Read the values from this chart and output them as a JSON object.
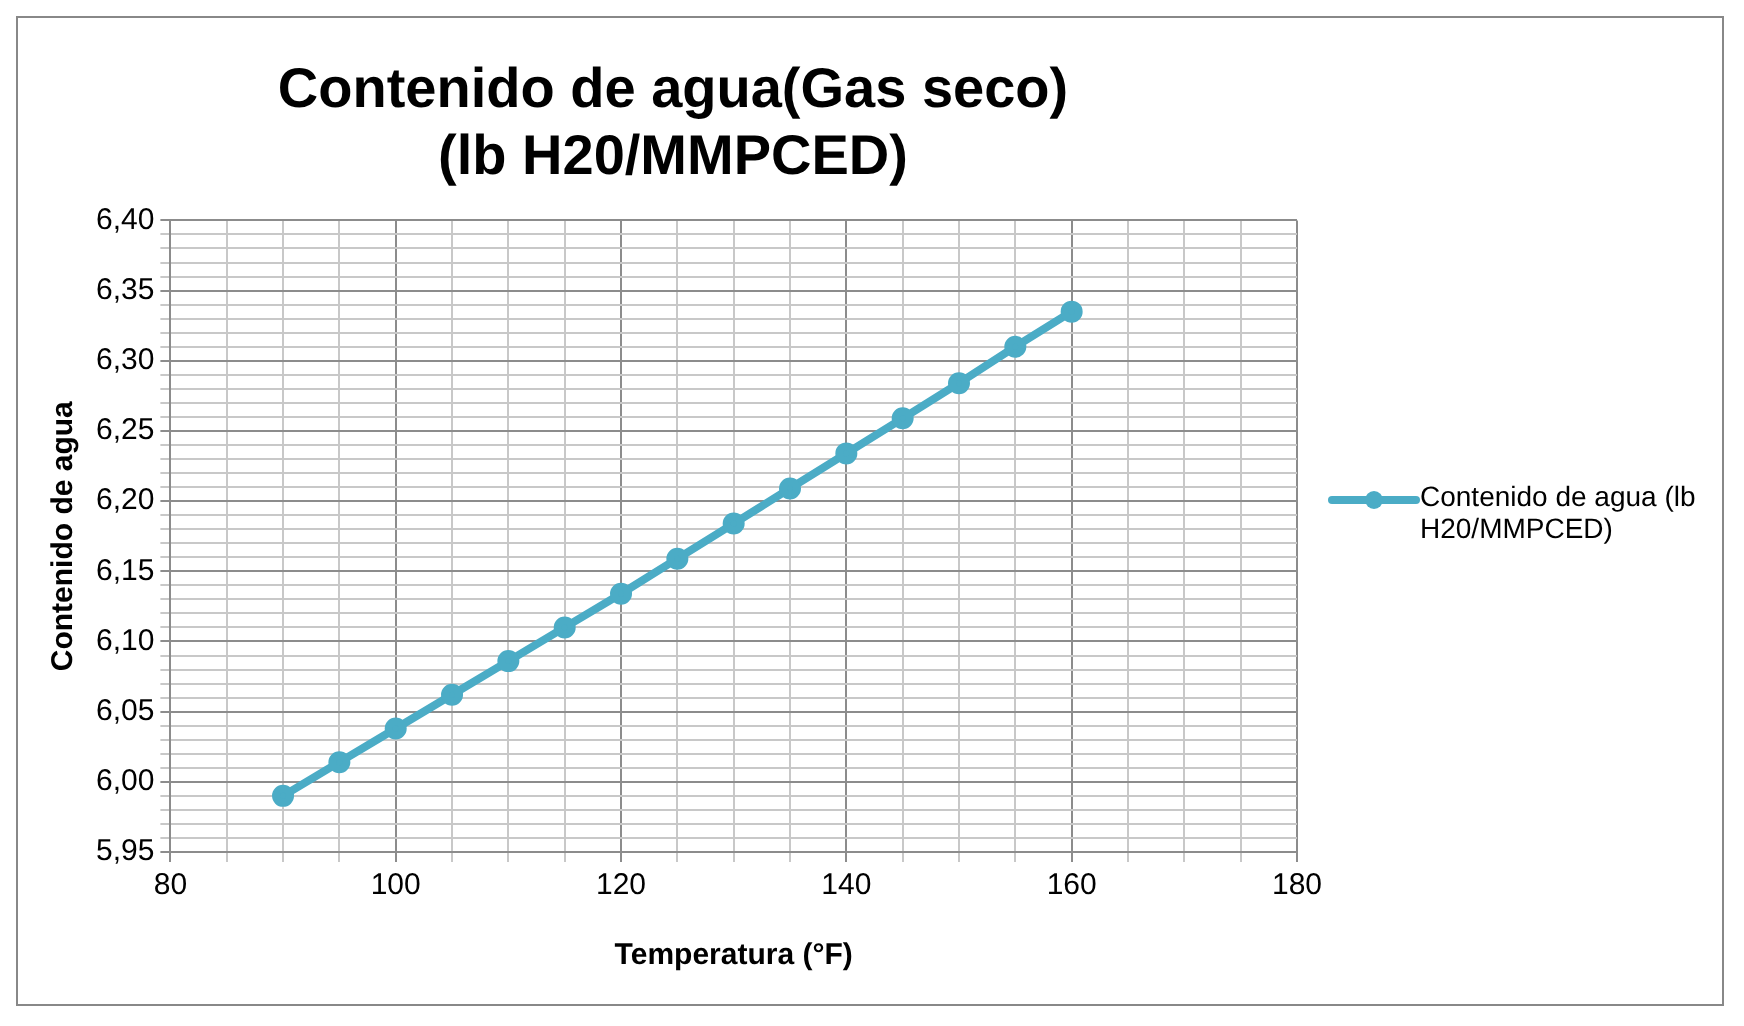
{
  "chart_data": {
    "type": "line",
    "title": "Contenido de agua(Gas seco)\n(lb H20/MMPCED)",
    "xlabel": "Temperatura (°F)",
    "ylabel": "Contenido de agua",
    "x": [
      90,
      95,
      100,
      105,
      110,
      115,
      120,
      125,
      130,
      135,
      140,
      145,
      150,
      155,
      160
    ],
    "series": [
      {
        "name": "Contenido de agua (lb H20/MMPCED)",
        "color": "#4bacc6",
        "values": [
          5.99,
          6.014,
          6.038,
          6.062,
          6.086,
          6.11,
          6.134,
          6.159,
          6.184,
          6.209,
          6.234,
          6.259,
          6.284,
          6.31,
          6.335
        ]
      }
    ],
    "xlim": [
      80,
      180
    ],
    "xticks": [
      80,
      {
        "value": 85,
        "label": null
      },
      {
        "value": 90,
        "label": null
      },
      {
        "value": 95,
        "label": null
      },
      100,
      {
        "value": 105,
        "label": null
      },
      {
        "value": 110,
        "label": null
      },
      {
        "value": 115,
        "label": null
      },
      120,
      {
        "value": 125,
        "label": null
      },
      {
        "value": 130,
        "label": null
      },
      {
        "value": 135,
        "label": null
      },
      140,
      {
        "value": 145,
        "label": null
      },
      {
        "value": 150,
        "label": null
      },
      {
        "value": 155,
        "label": null
      },
      160,
      {
        "value": 165,
        "label": null
      },
      {
        "value": 170,
        "label": null
      },
      {
        "value": 175,
        "label": null
      },
      180
    ],
    "ylim": [
      5.95,
      6.4
    ],
    "yticks": [
      {
        "value": 5.95,
        "label": "5,95"
      },
      {
        "value": 5.96,
        "label": null
      },
      {
        "value": 5.97,
        "label": null
      },
      {
        "value": 5.98,
        "label": null
      },
      {
        "value": 5.99,
        "label": null
      },
      {
        "value": 6.0,
        "label": "6,00"
      },
      {
        "value": 6.01,
        "label": null
      },
      {
        "value": 6.02,
        "label": null
      },
      {
        "value": 6.03,
        "label": null
      },
      {
        "value": 6.04,
        "label": null
      },
      {
        "value": 6.05,
        "label": "6,05"
      },
      {
        "value": 6.06,
        "label": null
      },
      {
        "value": 6.07,
        "label": null
      },
      {
        "value": 6.08,
        "label": null
      },
      {
        "value": 6.09,
        "label": null
      },
      {
        "value": 6.1,
        "label": "6,10"
      },
      {
        "value": 6.11,
        "label": null
      },
      {
        "value": 6.12,
        "label": null
      },
      {
        "value": 6.13,
        "label": null
      },
      {
        "value": 6.14,
        "label": null
      },
      {
        "value": 6.15,
        "label": "6,15"
      },
      {
        "value": 6.16,
        "label": null
      },
      {
        "value": 6.17,
        "label": null
      },
      {
        "value": 6.18,
        "label": null
      },
      {
        "value": 6.19,
        "label": null
      },
      {
        "value": 6.2,
        "label": "6,20"
      },
      {
        "value": 6.21,
        "label": null
      },
      {
        "value": 6.22,
        "label": null
      },
      {
        "value": 6.23,
        "label": null
      },
      {
        "value": 6.24,
        "label": null
      },
      {
        "value": 6.25,
        "label": "6,25"
      },
      {
        "value": 6.26,
        "label": null
      },
      {
        "value": 6.27,
        "label": null
      },
      {
        "value": 6.28,
        "label": null
      },
      {
        "value": 6.29,
        "label": null
      },
      {
        "value": 6.3,
        "label": "6,30"
      },
      {
        "value": 6.31,
        "label": null
      },
      {
        "value": 6.32,
        "label": null
      },
      {
        "value": 6.33,
        "label": null
      },
      {
        "value": 6.34,
        "label": null
      },
      {
        "value": 6.35,
        "label": "6,35"
      },
      {
        "value": 6.36,
        "label": null
      },
      {
        "value": 6.37,
        "label": null
      },
      {
        "value": 6.38,
        "label": null
      },
      {
        "value": 6.39,
        "label": null
      },
      {
        "value": 6.4,
        "label": "6,40"
      }
    ],
    "grid": true,
    "legend": "right",
    "marker": "circle",
    "line_style": "solid"
  }
}
